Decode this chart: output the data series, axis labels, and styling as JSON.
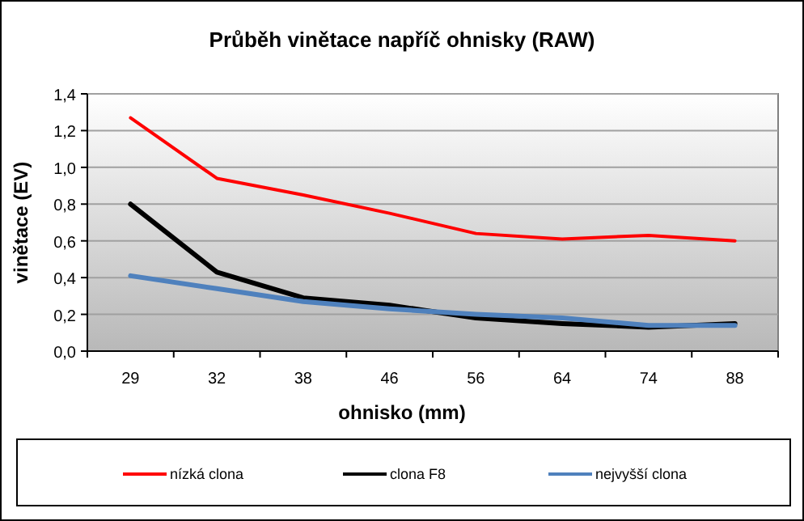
{
  "chart_data": {
    "type": "line",
    "title": "Průběh vinětace napříč ohnisky (RAW)",
    "xlabel": "ohnisko (mm)",
    "ylabel": "vinětace (EV)",
    "categories": [
      "29",
      "32",
      "38",
      "46",
      "56",
      "64",
      "74",
      "88"
    ],
    "series": [
      {
        "name": "nízká clona",
        "color": "#ff0000",
        "values": [
          1.27,
          0.94,
          0.85,
          0.75,
          0.64,
          0.61,
          0.63,
          0.6
        ]
      },
      {
        "name": "clona F8",
        "color": "#000000",
        "values": [
          0.8,
          0.43,
          0.29,
          0.25,
          0.18,
          0.15,
          0.13,
          0.15
        ]
      },
      {
        "name": "nejvyšší clona",
        "color": "#4f81bd",
        "values": [
          0.41,
          0.34,
          0.27,
          0.23,
          0.2,
          0.18,
          0.14,
          0.14
        ]
      }
    ],
    "ylim": [
      0,
      1.4
    ],
    "yticks": [
      {
        "value": 0,
        "label": "0,0"
      },
      {
        "value": 0.2,
        "label": "0,2"
      },
      {
        "value": 0.4,
        "label": "0,4"
      },
      {
        "value": 0.6,
        "label": "0,6"
      },
      {
        "value": 0.8,
        "label": "0,8"
      },
      {
        "value": 1.0,
        "label": "1,0"
      },
      {
        "value": 1.2,
        "label": "1,2"
      },
      {
        "value": 1.4,
        "label": "1,4"
      }
    ],
    "grid": "y",
    "legend": "bottom",
    "marker": "none",
    "line_style": "solid"
  }
}
